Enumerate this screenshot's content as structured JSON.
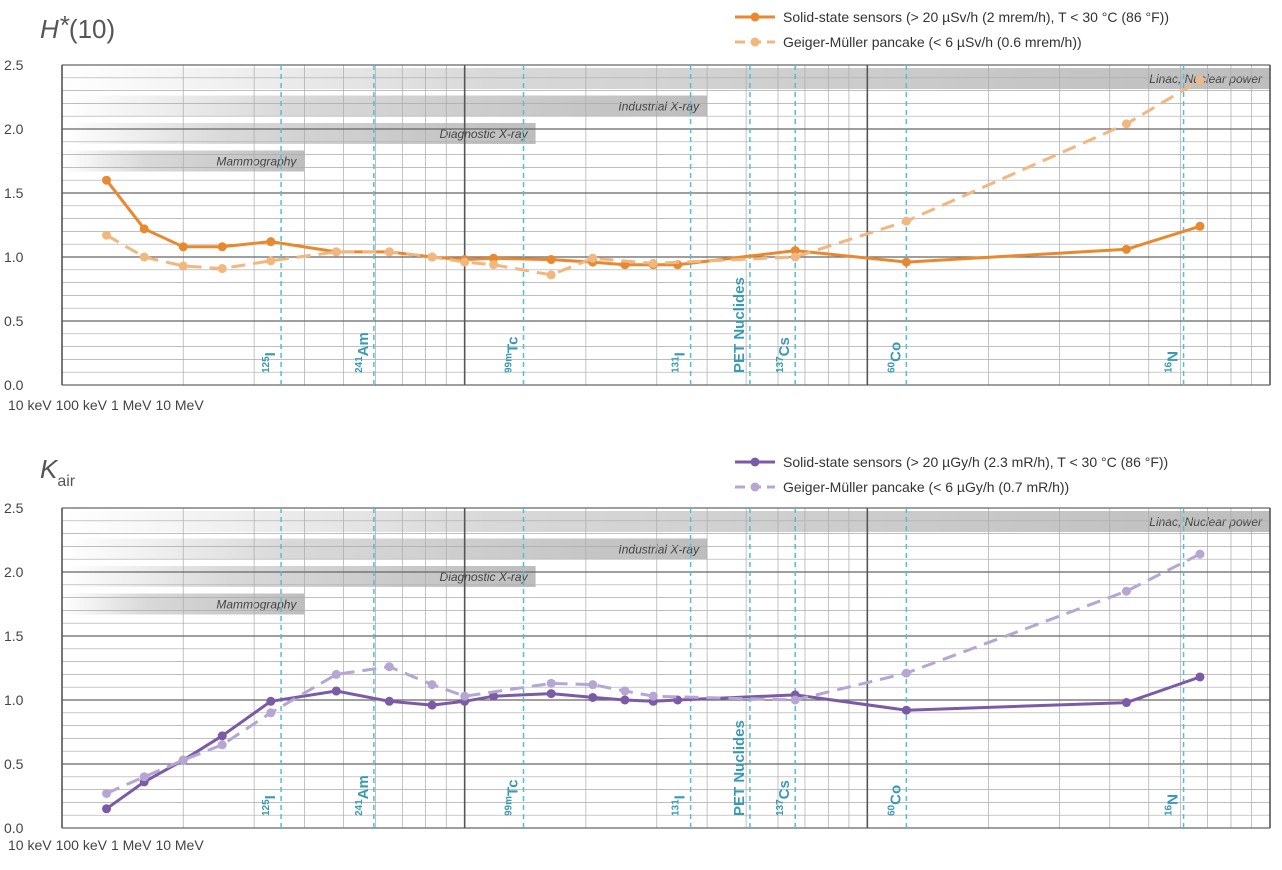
{
  "chart_data": [
    {
      "type": "line",
      "title_symbol": "H",
      "title_sup": "*",
      "title_rest": "(10)",
      "xscale": "log",
      "xlim": [
        10,
        10000
      ],
      "xticks": [
        {
          "value": 10,
          "label": "10 keV"
        },
        {
          "value": 100,
          "label": "100 keV"
        },
        {
          "value": 1000,
          "label": "1 MeV"
        },
        {
          "value": 10000,
          "label": "10 MeV"
        }
      ],
      "ylim": [
        0,
        2.5
      ],
      "yticks": [
        {
          "value": 0,
          "label": "0.0"
        },
        {
          "value": 0.5,
          "label": "0.5"
        },
        {
          "value": 1,
          "label": "1.0"
        },
        {
          "value": 1.5,
          "label": "1.5"
        },
        {
          "value": 2,
          "label": "2.0"
        },
        {
          "value": 2.5,
          "label": "2.5"
        }
      ],
      "grid": true,
      "bands": [
        {
          "label": "Linac, Nuclear power",
          "end": 10000
        },
        {
          "label": "Industrial X-ray",
          "end": 400
        },
        {
          "label": "Diagnostic X-ray",
          "end": 150
        },
        {
          "label": "Mammography",
          "end": 40
        }
      ],
      "nuclides": [
        {
          "mass": "125",
          "symbol": "I",
          "energy": 35
        },
        {
          "mass": "241",
          "symbol": "Am",
          "energy": 59.5
        },
        {
          "mass": "99m",
          "symbol": "Tc",
          "energy": 140
        },
        {
          "mass": "131",
          "symbol": "I",
          "energy": 364
        },
        {
          "symbol": "PET Nuclides",
          "energy": 511
        },
        {
          "mass": "137",
          "symbol": "Cs",
          "energy": 662
        },
        {
          "mass": "60",
          "symbol": "Co",
          "energy": 1250
        },
        {
          "mass": "16",
          "symbol": "N",
          "energy": 6100
        }
      ],
      "series": [
        {
          "name": "Solid-state sensors (> 20 µSv/h (2 mrem/h), T < 30 °C (86 °F))",
          "color": "#e8892f",
          "dash": false,
          "x": [
            12.9,
            16,
            20,
            25,
            33,
            48,
            65,
            83,
            100,
            118,
            164,
            208,
            250,
            294,
            338,
            662,
            1250,
            4400,
            6700
          ],
          "values": [
            1.6,
            1.22,
            1.08,
            1.08,
            1.12,
            1.04,
            1.04,
            1.0,
            0.98,
            0.99,
            0.98,
            0.96,
            0.94,
            0.94,
            0.94,
            1.05,
            0.96,
            1.06,
            1.24
          ]
        },
        {
          "name": "Geiger-Müller pancake (< 6 µSv/h (0.6 mrem/h))",
          "color": "#f2b77f",
          "dash": true,
          "x": [
            12.9,
            16,
            20,
            25,
            33,
            48,
            65,
            83,
            100,
            118,
            164,
            208,
            294,
            662,
            1250,
            4400,
            6700
          ],
          "values": [
            1.17,
            1.0,
            0.93,
            0.91,
            0.97,
            1.04,
            1.04,
            1.0,
            0.96,
            0.94,
            0.86,
            0.99,
            0.95,
            1.0,
            1.28,
            2.04,
            2.38
          ]
        }
      ]
    },
    {
      "type": "line",
      "title_symbol": "K",
      "title_sub": "air",
      "xscale": "log",
      "xlim": [
        10,
        10000
      ],
      "xticks": [
        {
          "value": 10,
          "label": "10 keV"
        },
        {
          "value": 100,
          "label": "100 keV"
        },
        {
          "value": 1000,
          "label": "1 MeV"
        },
        {
          "value": 10000,
          "label": "10 MeV"
        }
      ],
      "ylim": [
        0,
        2.5
      ],
      "yticks": [
        {
          "value": 0,
          "label": "0.0"
        },
        {
          "value": 0.5,
          "label": "0.5"
        },
        {
          "value": 1,
          "label": "1.0"
        },
        {
          "value": 1.5,
          "label": "1.5"
        },
        {
          "value": 2,
          "label": "2.0"
        },
        {
          "value": 2.5,
          "label": "2.5"
        }
      ],
      "grid": true,
      "bands": [
        {
          "label": "Linac, Nuclear power",
          "end": 10000
        },
        {
          "label": "Industrial X-ray",
          "end": 400
        },
        {
          "label": "Diagnostic X-ray",
          "end": 150
        },
        {
          "label": "Mammography",
          "end": 40
        }
      ],
      "nuclides": [
        {
          "mass": "125",
          "symbol": "I",
          "energy": 35
        },
        {
          "mass": "241",
          "symbol": "Am",
          "energy": 59.5
        },
        {
          "mass": "99m",
          "symbol": "Tc",
          "energy": 140
        },
        {
          "mass": "131",
          "symbol": "I",
          "energy": 364
        },
        {
          "symbol": "PET Nuclides",
          "energy": 511
        },
        {
          "mass": "137",
          "symbol": "Cs",
          "energy": 662
        },
        {
          "mass": "60",
          "symbol": "Co",
          "energy": 1250
        },
        {
          "mass": "16",
          "symbol": "N",
          "energy": 6100
        }
      ],
      "series": [
        {
          "name": "Solid-state sensors (> 20 µGy/h (2.3 mR/h), T < 30 °C (86 °F))",
          "color": "#7b5aa6",
          "dash": false,
          "x": [
            12.9,
            16,
            20,
            25,
            33,
            48,
            65,
            83,
            100,
            118,
            164,
            208,
            250,
            294,
            338,
            662,
            1250,
            4400,
            6700
          ],
          "values": [
            0.15,
            0.36,
            0.53,
            0.72,
            0.99,
            1.07,
            0.99,
            0.96,
            0.99,
            1.03,
            1.05,
            1.02,
            1.0,
            0.99,
            1.0,
            1.04,
            0.92,
            0.98,
            1.18
          ]
        },
        {
          "name": "Geiger-Müller pancake (< 6 µGy/h (0.7 mR/h))",
          "color": "#b5a6d3",
          "dash": true,
          "x": [
            12.9,
            16,
            20,
            25,
            33,
            48,
            65,
            83,
            100,
            164,
            208,
            250,
            294,
            662,
            1250,
            4400,
            6700
          ],
          "values": [
            0.27,
            0.4,
            0.53,
            0.65,
            0.9,
            1.2,
            1.26,
            1.12,
            1.03,
            1.13,
            1.12,
            1.07,
            1.03,
            1.0,
            1.21,
            1.85,
            2.14
          ]
        }
      ]
    }
  ]
}
